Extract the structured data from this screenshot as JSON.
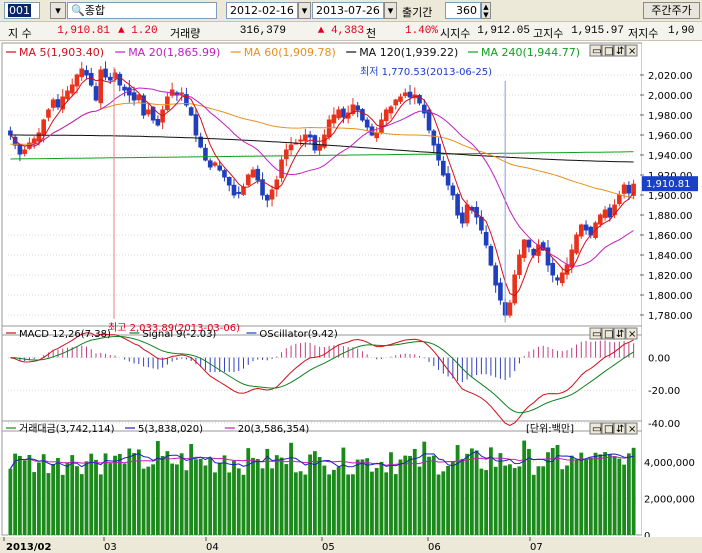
{
  "toolbar": {
    "code": "001",
    "name_label": "종합",
    "date_from": "2012-02-16",
    "date_to": "2013-07-26",
    "count_label": "출기간",
    "count": "360",
    "period_button": "주간주가"
  },
  "quote": {
    "label_index": "지 수",
    "index_value": "1,910.81",
    "change": "▲ 1.20",
    "volume_label": "거래량",
    "volume": "316,379",
    "volume_change": "▲ 4,383",
    "volume_unit": "천",
    "pct": "1.40%",
    "open_label": "시지수",
    "open": "1,912.05",
    "high_label": "고지수",
    "high": "1,915.97",
    "low_label": "저지수",
    "low": "1,90"
  },
  "colors": {
    "up": "#e8321c",
    "down": "#1f3fbf",
    "ma5": "#d0101c",
    "ma20": "#c020c0",
    "ma60": "#e8901c",
    "ma120": "#101010",
    "ma240": "#10a020",
    "macd": "#d0101c",
    "signal": "#108020",
    "osc_up": "#c04080",
    "osc_down": "#3040c0",
    "vol": "#1a8a1a",
    "vol5": "#2020c0",
    "vol20": "#c020c0"
  },
  "chart_data": [
    {
      "type": "candlestick",
      "legend": [
        {
          "name": "MA 5(1,903.40)",
          "color": "#d0101c"
        },
        {
          "name": "MA 20(1,865.99)",
          "color": "#c020c0"
        },
        {
          "name": "MA 60(1,909.78)",
          "color": "#e8901c"
        },
        {
          "name": "MA 120(1,939.22)",
          "color": "#101010"
        },
        {
          "name": "MA 240(1,944.77)",
          "color": "#10a020"
        }
      ],
      "ylim": [
        1760,
        2040
      ],
      "yticks": [
        "2,020.00",
        "2,000.00",
        "1,980.00",
        "1,960.00",
        "1,940.00",
        "1,920.00",
        "1,900.00",
        "1,880.00",
        "1,860.00",
        "1,840.00",
        "1,820.00",
        "1,800.00",
        "1,780.00"
      ],
      "current_label": "1,910.81",
      "current_value": 1910.81,
      "annotations": [
        {
          "text": "최저 1,770.53(2013-06-25)",
          "value": 1770.53
        },
        {
          "text": "최고 2,033.89(2013-03-06)",
          "value": 2033.89
        }
      ],
      "xticks": [
        "2013/02",
        "03",
        "04",
        "05",
        "06",
        "07"
      ],
      "closes": [
        1960,
        1950,
        1941,
        1945,
        1952,
        1956,
        1962,
        1975,
        1985,
        1995,
        1988,
        1998,
        2004,
        2010,
        2020,
        2026,
        2020,
        2010,
        1995,
        2025,
        2018,
        2015,
        2022,
        2010,
        2005,
        2000,
        1995,
        2000,
        1980,
        1985,
        1975,
        1970,
        1985,
        1998,
        2005,
        2000,
        2002,
        1990,
        1980,
        1960,
        1948,
        1935,
        1928,
        1932,
        1925,
        1918,
        1910,
        1900,
        1902,
        1908,
        1920,
        1925,
        1915,
        1900,
        1895,
        1905,
        1915,
        1935,
        1945,
        1950,
        1952,
        1955,
        1960,
        1958,
        1945,
        1950,
        1960,
        1975,
        1980,
        1985,
        1978,
        1982,
        1990,
        1985,
        1975,
        1968,
        1960,
        1962,
        1975,
        1985,
        1988,
        1995,
        1998,
        2002,
        1998,
        2000,
        1992,
        1982,
        1965,
        1950,
        1935,
        1920,
        1910,
        1900,
        1880,
        1872,
        1890,
        1885,
        1878,
        1865,
        1850,
        1830,
        1810,
        1795,
        1780,
        1792,
        1820,
        1840,
        1855,
        1848,
        1840,
        1850,
        1845,
        1830,
        1820,
        1815,
        1822,
        1830,
        1845,
        1860,
        1870,
        1865,
        1860,
        1872,
        1880,
        1885,
        1878,
        1890,
        1900,
        1910,
        1902,
        1910.81
      ]
    },
    {
      "type": "line",
      "legend": [
        {
          "name": "MACD 12,26(7.38)",
          "color": "#d0101c"
        },
        {
          "name": "Signal 9(-2.03)",
          "color": "#108020"
        },
        {
          "name": "OScillator(9.42)",
          "color": "#1f3fbf"
        }
      ],
      "ylim": [
        -45,
        12
      ],
      "yticks": [
        "0.00",
        "-20.00",
        "-40.00"
      ]
    },
    {
      "type": "bar",
      "legend": [
        {
          "name": "거래대금(3,742,114)",
          "color": "#1a8a1a"
        },
        {
          "name": "5(3,838,020)",
          "color": "#2020c0"
        },
        {
          "name": "20(3,586,354)",
          "color": "#c020c0"
        }
      ],
      "unit_label": "[단위:백만]",
      "ylim": [
        0,
        5600000
      ],
      "yticks": [
        "4,000,000",
        "2,000,000",
        "0"
      ]
    }
  ]
}
